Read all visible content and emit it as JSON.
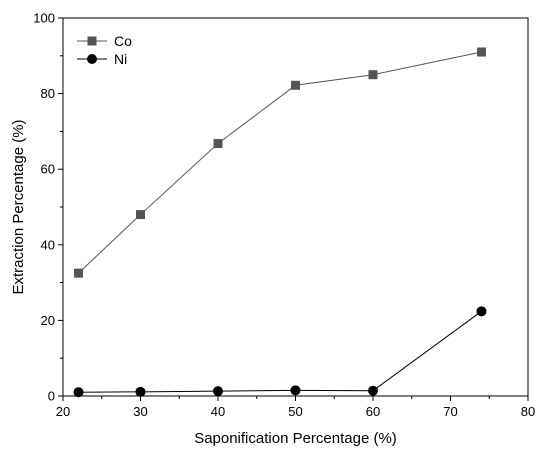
{
  "chart_data": {
    "type": "line",
    "xlabel": "Saponification Percentage (%)",
    "ylabel": "Extraction Percentage (%)",
    "xlim": [
      20,
      80
    ],
    "ylim": [
      0,
      100
    ],
    "x_ticks": [
      "20",
      "30",
      "40",
      "50",
      "60",
      "70",
      "80"
    ],
    "y_ticks": [
      "0",
      "20",
      "40",
      "60",
      "80",
      "100"
    ],
    "grid": false,
    "legend_position": "top-left",
    "series": [
      {
        "name": "Co",
        "marker": "square",
        "color": "#555555",
        "x": [
          22,
          30,
          40,
          50,
          60,
          74
        ],
        "y": [
          32.5,
          48,
          66.8,
          82.2,
          85,
          91
        ]
      },
      {
        "name": "Ni",
        "marker": "circle",
        "color": "#000000",
        "x": [
          22,
          30,
          40,
          50,
          60,
          74
        ],
        "y": [
          1.0,
          1.1,
          1.3,
          1.5,
          1.4,
          22.4
        ]
      }
    ]
  }
}
